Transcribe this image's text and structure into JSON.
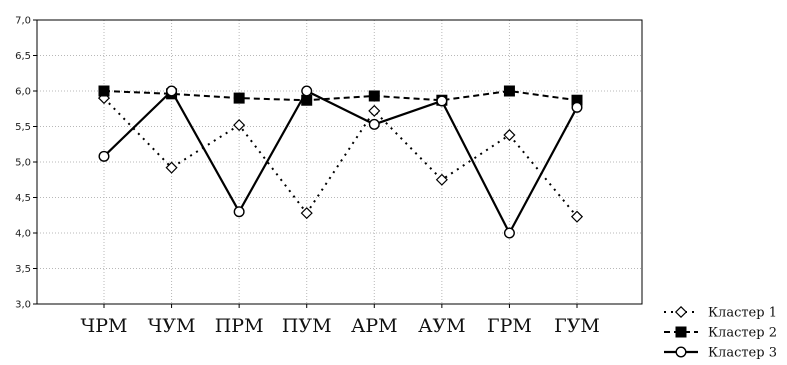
{
  "chart_data": {
    "type": "line",
    "categories": [
      "ЧРМ",
      "ЧУМ",
      "ПРМ",
      "ПУМ",
      "АРМ",
      "АУМ",
      "ГРМ",
      "ГУМ"
    ],
    "ylim": [
      3.0,
      7.0
    ],
    "yticks": [
      "3,0",
      "3,5",
      "4,0",
      "4,5",
      "5,0",
      "5,5",
      "6,0",
      "6,5",
      "7,0"
    ],
    "grid": true,
    "legend_position": "bottom-right",
    "series": [
      {
        "name": "Кластер 1",
        "values": [
          5.9,
          4.92,
          5.52,
          4.28,
          5.72,
          4.75,
          5.38,
          4.23
        ],
        "line": "dotted",
        "marker": "diamond-open",
        "color": "#000000"
      },
      {
        "name": "Кластер 2",
        "values": [
          6.0,
          5.96,
          5.9,
          5.87,
          5.93,
          5.87,
          6.0,
          5.87
        ],
        "line": "dashed",
        "marker": "square-filled",
        "color": "#000000"
      },
      {
        "name": "Кластер 3",
        "values": [
          5.08,
          6.0,
          4.3,
          6.0,
          5.53,
          5.86,
          4.0,
          5.77
        ],
        "line": "solid",
        "marker": "circle-open",
        "color": "#000000"
      }
    ]
  }
}
